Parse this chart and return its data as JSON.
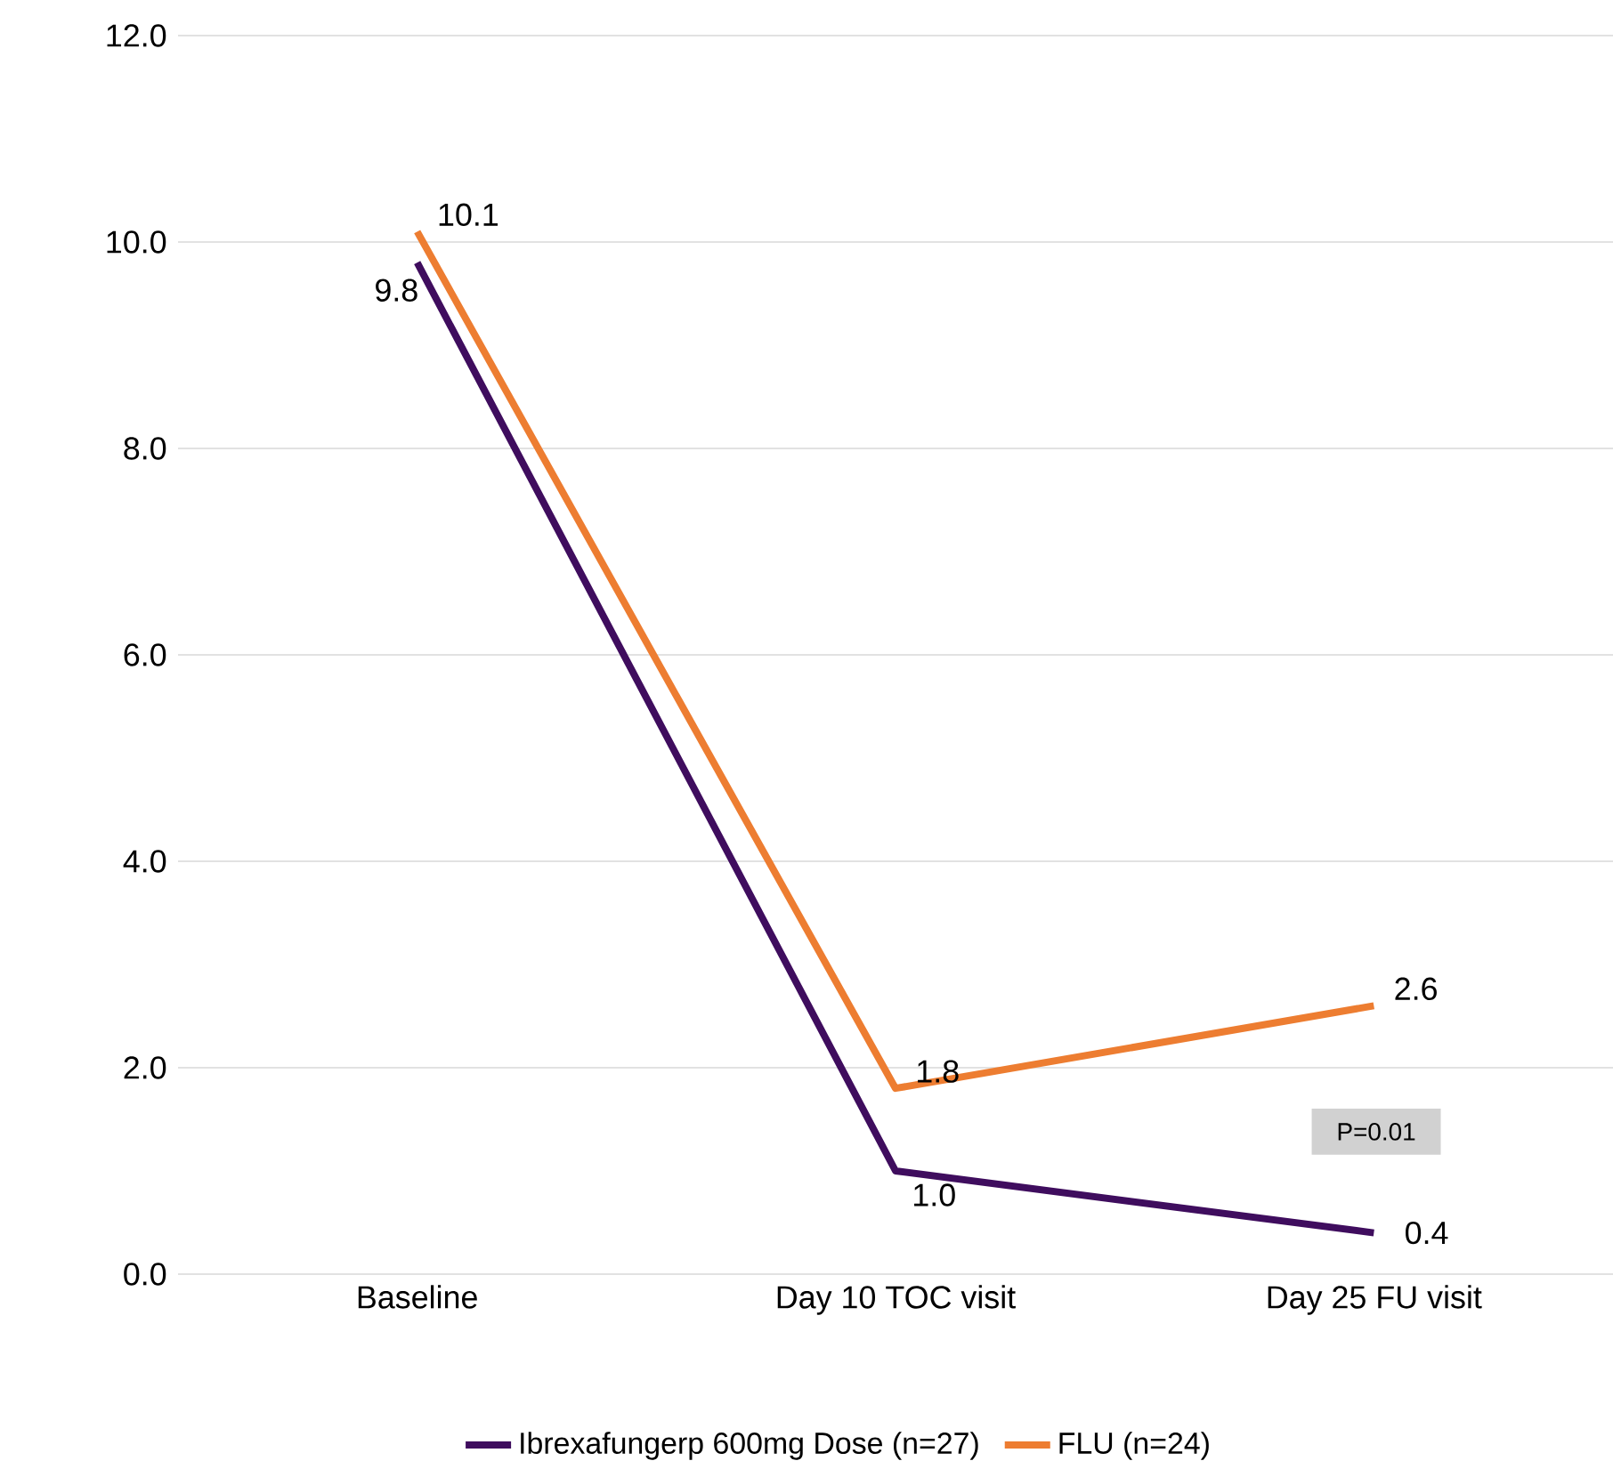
{
  "chart_data": {
    "type": "line",
    "categories": [
      "Baseline",
      "Day 10 TOC visit",
      "Day 25 FU visit"
    ],
    "series": [
      {
        "name": "Ibrexafungerp 600mg Dose (n=27)",
        "color": "#3f0d5e",
        "values": [
          9.8,
          1.0,
          0.4
        ],
        "value_labels": [
          "9.8",
          "1.0",
          "0.4"
        ]
      },
      {
        "name": "FLU (n=24)",
        "color": "#ed7d31",
        "values": [
          10.1,
          1.8,
          2.6
        ],
        "value_labels": [
          "10.1",
          "1.8",
          "2.6"
        ]
      }
    ],
    "ylim": [
      0,
      12
    ],
    "yticks": [
      {
        "value": 0,
        "label": "0.0"
      },
      {
        "value": 2,
        "label": "2.0"
      },
      {
        "value": 4,
        "label": "4.0"
      },
      {
        "value": 6,
        "label": "6.0"
      },
      {
        "value": 8,
        "label": "8.0"
      },
      {
        "value": 10,
        "label": "10.0"
      },
      {
        "value": 12,
        "label": "12.0"
      }
    ],
    "grid": "y",
    "legend": "bottom",
    "marker": "none",
    "line_style": "solid",
    "annotations": [
      "P=0.01"
    ]
  }
}
